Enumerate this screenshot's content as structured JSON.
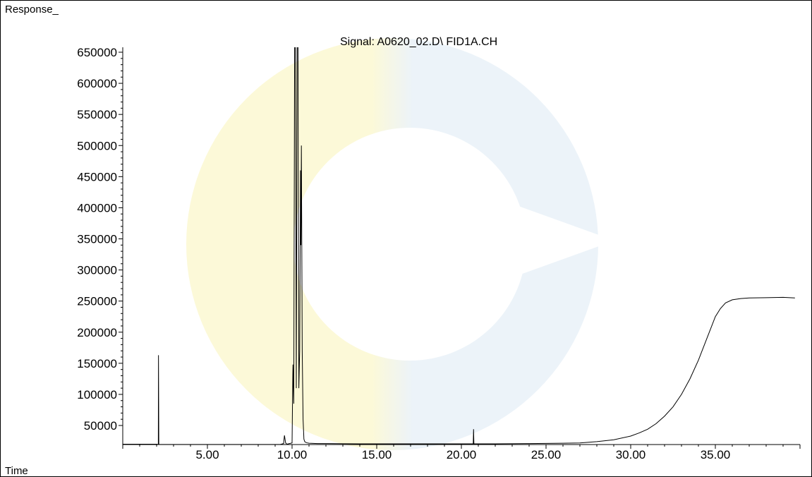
{
  "chart_data": {
    "type": "line",
    "title": "Signal: A0620_02.D\\ FID1A.CH",
    "ylabel": "Response_",
    "xlabel": "Time",
    "xlim": [
      0,
      40
    ],
    "ylim": [
      15000,
      660000
    ],
    "x_ticks": [
      5,
      10,
      15,
      20,
      25,
      30,
      35
    ],
    "x_tick_labels": [
      "5.00",
      "10.00",
      "15.00",
      "20.00",
      "25.00",
      "30.00",
      "35.00"
    ],
    "y_ticks": [
      50000,
      100000,
      150000,
      200000,
      250000,
      300000,
      350000,
      400000,
      450000,
      500000,
      550000,
      600000,
      650000
    ],
    "y_tick_labels": [
      "50000",
      "100000",
      "150000",
      "200000",
      "250000",
      "300000",
      "350000",
      "400000",
      "450000",
      "500000",
      "550000",
      "600000",
      "650000"
    ],
    "grid": false,
    "series": [
      {
        "color": "#000000",
        "x": [
          0,
          2.0,
          2.1,
          2.11,
          2.13,
          2.2,
          9.3,
          9.5,
          9.55,
          9.62,
          9.7,
          10.0,
          10.05,
          10.1,
          10.15,
          10.2,
          10.25,
          10.3,
          10.35,
          10.4,
          10.45,
          10.5,
          10.52,
          10.55,
          10.6,
          10.65,
          10.7,
          10.75,
          10.8,
          10.9,
          11.0,
          11.5,
          12,
          14,
          16,
          18,
          20,
          20.7,
          20.72,
          20.74,
          20.8,
          22,
          24,
          26,
          27,
          28,
          29,
          30,
          30.5,
          31,
          31.5,
          32,
          32.5,
          33,
          33.5,
          34,
          34.5,
          35,
          35.3,
          35.6,
          36,
          36.5,
          37,
          38,
          39,
          39.7
        ],
        "y": [
          20000,
          20000,
          19500,
          163000,
          19500,
          19500,
          19500,
          21000,
          34000,
          22000,
          20000,
          22000,
          148000,
          85000,
          660000,
          660000,
          110000,
          660000,
          660000,
          110000,
          170000,
          460000,
          340000,
          500000,
          170000,
          60000,
          28000,
          24000,
          23000,
          22000,
          21500,
          21000,
          21000,
          20500,
          20500,
          20500,
          20500,
          20500,
          44000,
          20500,
          20500,
          20500,
          21000,
          21500,
          22000,
          24000,
          27000,
          33000,
          38000,
          44000,
          53000,
          65000,
          80000,
          100000,
          125000,
          155000,
          190000,
          225000,
          238000,
          247000,
          252000,
          254000,
          255000,
          255500,
          256000,
          255000
        ]
      }
    ]
  },
  "watermark": {
    "colors": [
      "#fcf9d8",
      "#ecf3f9"
    ]
  }
}
